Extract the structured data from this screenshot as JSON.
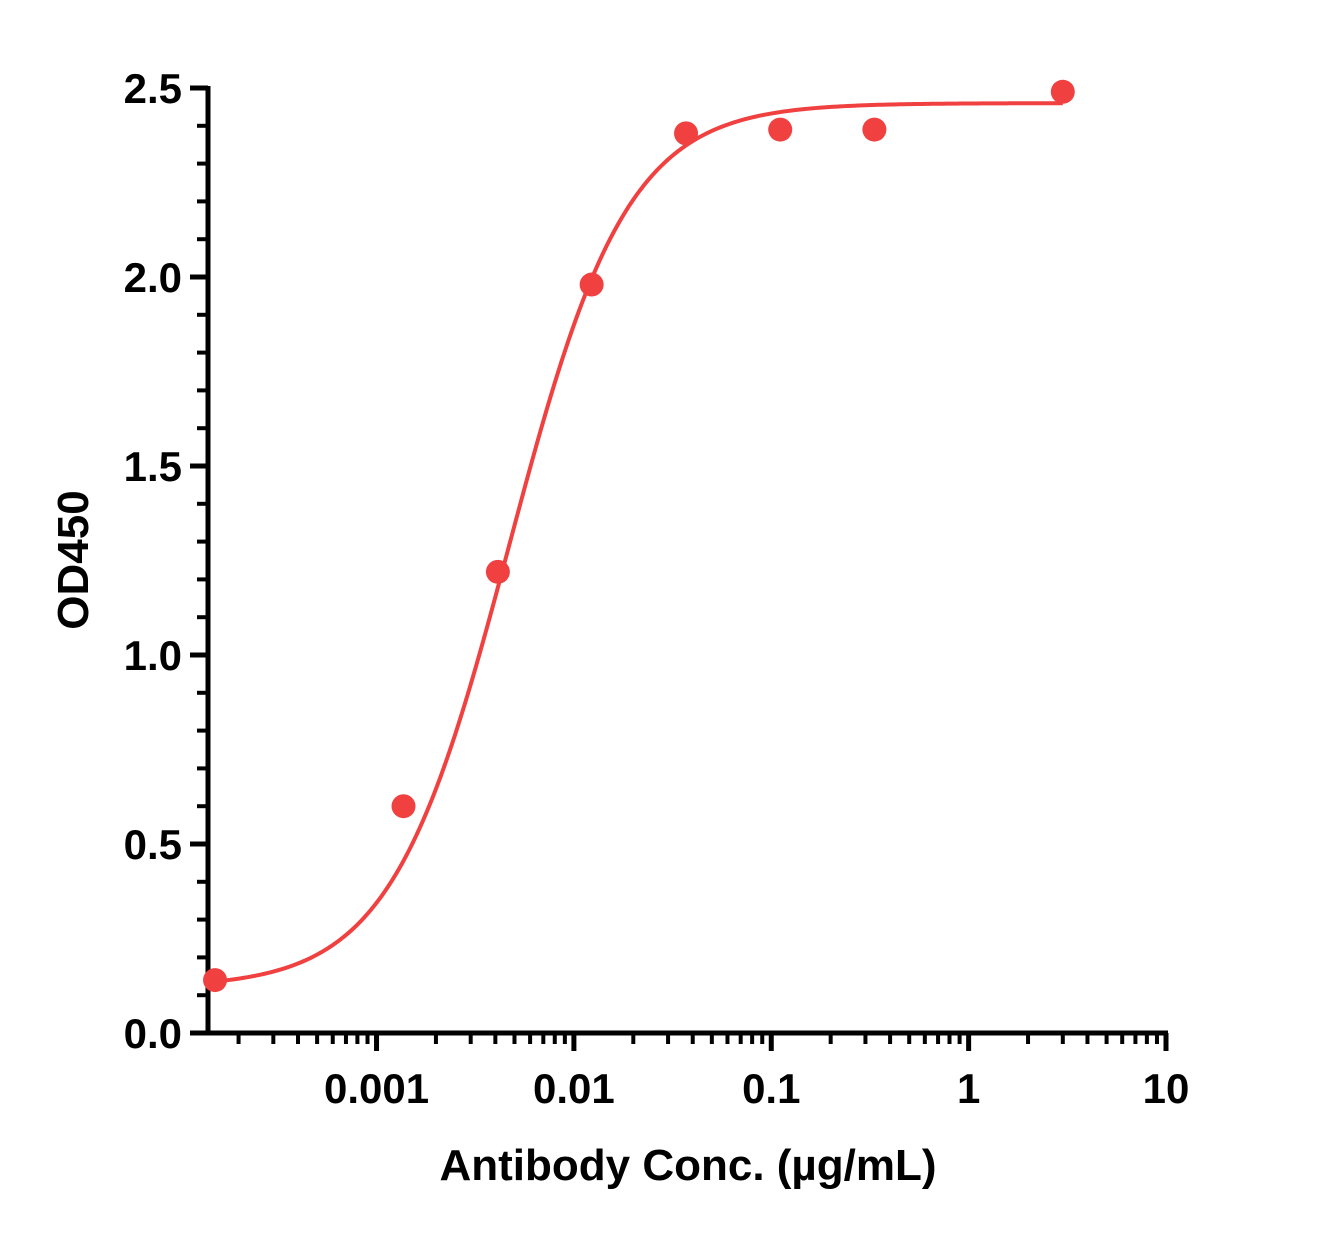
{
  "chart_data": {
    "type": "scatter",
    "xlabel": "Antibody Conc. (µg/mL)",
    "ylabel": "OD450",
    "x_scale": "log",
    "xlim": [
      0.00014,
      10
    ],
    "ylim": [
      0,
      2.5
    ],
    "x_ticks": [
      {
        "value": 0.001,
        "label": "0.001"
      },
      {
        "value": 0.01,
        "label": "0.01"
      },
      {
        "value": 0.1,
        "label": "0.1"
      },
      {
        "value": 1,
        "label": "1"
      },
      {
        "value": 10,
        "label": "10"
      }
    ],
    "y_ticks": [
      {
        "value": 0.0,
        "label": "0.0"
      },
      {
        "value": 0.5,
        "label": "0.5"
      },
      {
        "value": 1.0,
        "label": "1.0"
      },
      {
        "value": 1.5,
        "label": "1.5"
      },
      {
        "value": 2.0,
        "label": "2.0"
      },
      {
        "value": 2.5,
        "label": "2.5"
      }
    ],
    "grid": false,
    "color": "#f04040",
    "series": [
      {
        "points": [
          {
            "x": 0.000152,
            "y": 0.14
          },
          {
            "x": 0.00137,
            "y": 0.6
          },
          {
            "x": 0.00412,
            "y": 1.22
          },
          {
            "x": 0.0123,
            "y": 1.98
          },
          {
            "x": 0.037,
            "y": 2.38
          },
          {
            "x": 0.111,
            "y": 2.39
          },
          {
            "x": 0.333,
            "y": 2.39
          },
          {
            "x": 3.0,
            "y": 2.49
          }
        ],
        "fit": {
          "model": "4PL",
          "bottom": 0.12,
          "top": 2.46,
          "ec50": 0.0047,
          "hill": 1.45
        }
      }
    ]
  }
}
